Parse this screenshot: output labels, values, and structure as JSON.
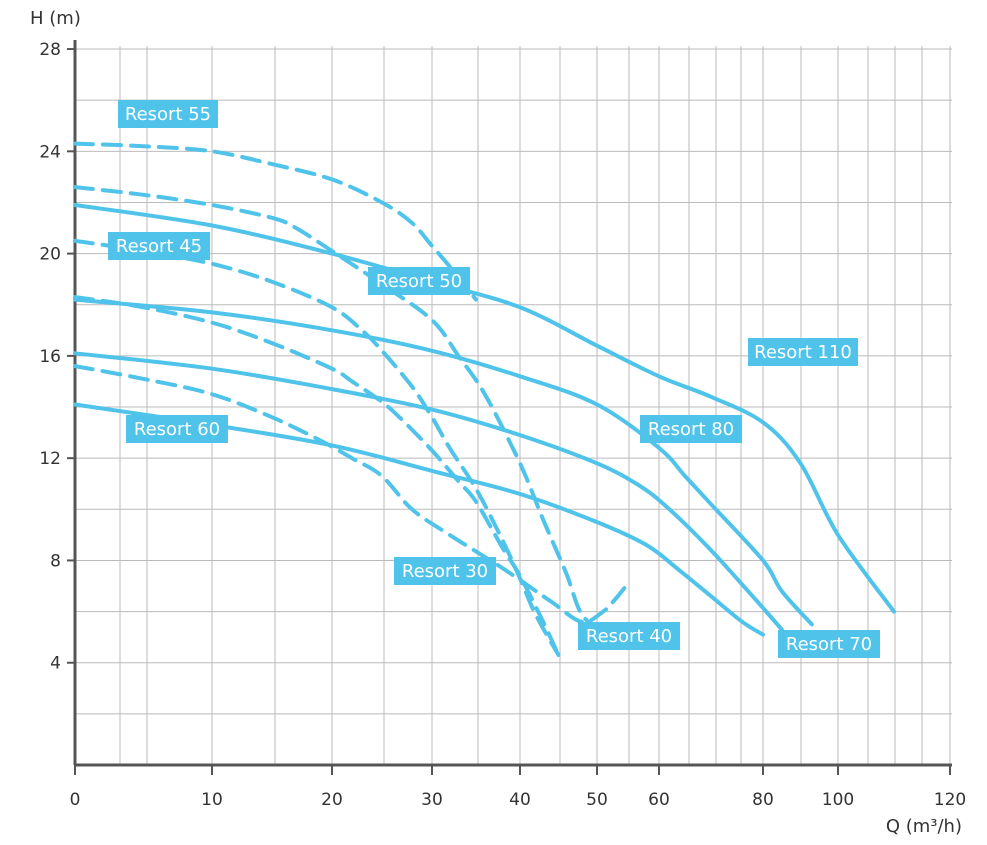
{
  "chart_data": {
    "type": "line",
    "ylabel": "H (m)",
    "xlabel": "Q (m³/h)",
    "x_ticks": [
      0,
      10,
      20,
      30,
      40,
      50,
      60,
      80,
      100,
      120
    ],
    "y_ticks": [
      4,
      8,
      12,
      16,
      20,
      24,
      28
    ],
    "xlim": [
      0,
      120
    ],
    "ylim": [
      0,
      28
    ],
    "x_scale": "nonlinear (compressed toward higher flow)",
    "grid": true,
    "legend": "none (inline labels)",
    "colors": {
      "curve": "#4fc3ea",
      "label_bg": "#4fc3ea",
      "label_text": "#ffffff",
      "grid": "#bbbbbb",
      "axis": "#555555"
    },
    "series": [
      {
        "name": "Resort 55",
        "style": "dashed",
        "points": [
          [
            0,
            24.3
          ],
          [
            5,
            24.2
          ],
          [
            10,
            24.0
          ],
          [
            15,
            23.5
          ],
          [
            20,
            22.9
          ],
          [
            25,
            22.0
          ],
          [
            28,
            21.2
          ],
          [
            30,
            20.3
          ],
          [
            32,
            19.5
          ],
          [
            35,
            18.2
          ]
        ]
      },
      {
        "name": "Resort 45",
        "style": "dashed",
        "points": [
          [
            0,
            20.5
          ],
          [
            5,
            20.1
          ],
          [
            10,
            19.6
          ],
          [
            15,
            18.9
          ],
          [
            20,
            17.9
          ],
          [
            23,
            17.0
          ],
          [
            25,
            16.2
          ],
          [
            28,
            14.8
          ],
          [
            30,
            13.6
          ],
          [
            32,
            12.4
          ],
          [
            35,
            10.8
          ],
          [
            38,
            8.8
          ],
          [
            40,
            7.3
          ],
          [
            42,
            5.9
          ],
          [
            45,
            4.3
          ]
        ]
      },
      {
        "name": "Resort 50",
        "style": "dashed",
        "points": [
          [
            0,
            22.6
          ],
          [
            5,
            22.3
          ],
          [
            10,
            21.9
          ],
          [
            15,
            21.4
          ],
          [
            17,
            21.0
          ],
          [
            20,
            20.1
          ],
          [
            25,
            18.8
          ],
          [
            30,
            17.4
          ],
          [
            33,
            16.0
          ],
          [
            36,
            14.5
          ],
          [
            40,
            11.8
          ],
          [
            43,
            9.6
          ],
          [
            46,
            7.5
          ],
          [
            48,
            5.9
          ],
          [
            51,
            5.2
          ]
        ]
      },
      {
        "name": "Resort 30",
        "style": "dashed",
        "points": [
          [
            0,
            18.3
          ],
          [
            5,
            17.9
          ],
          [
            10,
            17.3
          ],
          [
            15,
            16.5
          ],
          [
            20,
            15.5
          ],
          [
            22,
            15.0
          ],
          [
            25,
            14.2
          ],
          [
            27,
            13.5
          ],
          [
            30,
            12.3
          ],
          [
            33,
            11.1
          ],
          [
            35,
            10.3
          ],
          [
            38,
            8.5
          ],
          [
            40,
            7.4
          ],
          [
            43,
            5.6
          ],
          [
            45,
            4.3
          ]
        ]
      },
      {
        "name": "Resort 40",
        "style": "dashed",
        "points": [
          [
            0,
            15.6
          ],
          [
            5,
            15.1
          ],
          [
            10,
            14.5
          ],
          [
            15,
            13.6
          ],
          [
            19,
            12.7
          ],
          [
            22,
            12.0
          ],
          [
            25,
            11.3
          ],
          [
            28,
            10.0
          ],
          [
            32,
            9.0
          ],
          [
            38,
            7.7
          ],
          [
            44,
            6.4
          ],
          [
            48,
            5.6
          ],
          [
            51,
            6.0
          ],
          [
            53,
            6.5
          ],
          [
            55,
            7.1
          ]
        ]
      },
      {
        "name": "Resort 110",
        "style": "solid",
        "points": [
          [
            0,
            21.9
          ],
          [
            10,
            21.1
          ],
          [
            20,
            20.0
          ],
          [
            30,
            18.9
          ],
          [
            40,
            17.9
          ],
          [
            50,
            16.4
          ],
          [
            60,
            15.2
          ],
          [
            70,
            14.4
          ],
          [
            80,
            13.4
          ],
          [
            90,
            11.8
          ],
          [
            100,
            9.0
          ],
          [
            110,
            6.0
          ]
        ]
      },
      {
        "name": "Resort 80",
        "style": "solid",
        "points": [
          [
            0,
            18.2
          ],
          [
            10,
            17.7
          ],
          [
            20,
            17.0
          ],
          [
            30,
            16.2
          ],
          [
            40,
            15.2
          ],
          [
            50,
            14.1
          ],
          [
            60,
            12.4
          ],
          [
            65,
            11.3
          ],
          [
            70,
            10.2
          ],
          [
            80,
            8.0
          ],
          [
            85,
            6.8
          ],
          [
            93,
            5.5
          ]
        ]
      },
      {
        "name": "Resort 70",
        "style": "solid",
        "points": [
          [
            0,
            16.1
          ],
          [
            10,
            15.5
          ],
          [
            20,
            14.7
          ],
          [
            30,
            13.9
          ],
          [
            40,
            12.9
          ],
          [
            50,
            11.8
          ],
          [
            57,
            10.9
          ],
          [
            62,
            10.0
          ],
          [
            70,
            8.4
          ],
          [
            78,
            6.6
          ],
          [
            85,
            5.3
          ]
        ]
      },
      {
        "name": "Resort 60",
        "style": "solid",
        "points": [
          [
            0,
            14.1
          ],
          [
            10,
            13.3
          ],
          [
            20,
            12.5
          ],
          [
            30,
            11.5
          ],
          [
            40,
            10.6
          ],
          [
            50,
            9.5
          ],
          [
            58,
            8.6
          ],
          [
            64,
            7.6
          ],
          [
            70,
            6.6
          ],
          [
            76,
            5.6
          ],
          [
            80,
            5.1
          ]
        ]
      }
    ],
    "labels": [
      {
        "text": "Resort 55"
      },
      {
        "text": "Resort 45"
      },
      {
        "text": "Resort 50"
      },
      {
        "text": "Resort 110"
      },
      {
        "text": "Resort 80"
      },
      {
        "text": "Resort 60"
      },
      {
        "text": "Resort 30"
      },
      {
        "text": "Resort 40"
      },
      {
        "text": "Resort 70"
      }
    ]
  }
}
